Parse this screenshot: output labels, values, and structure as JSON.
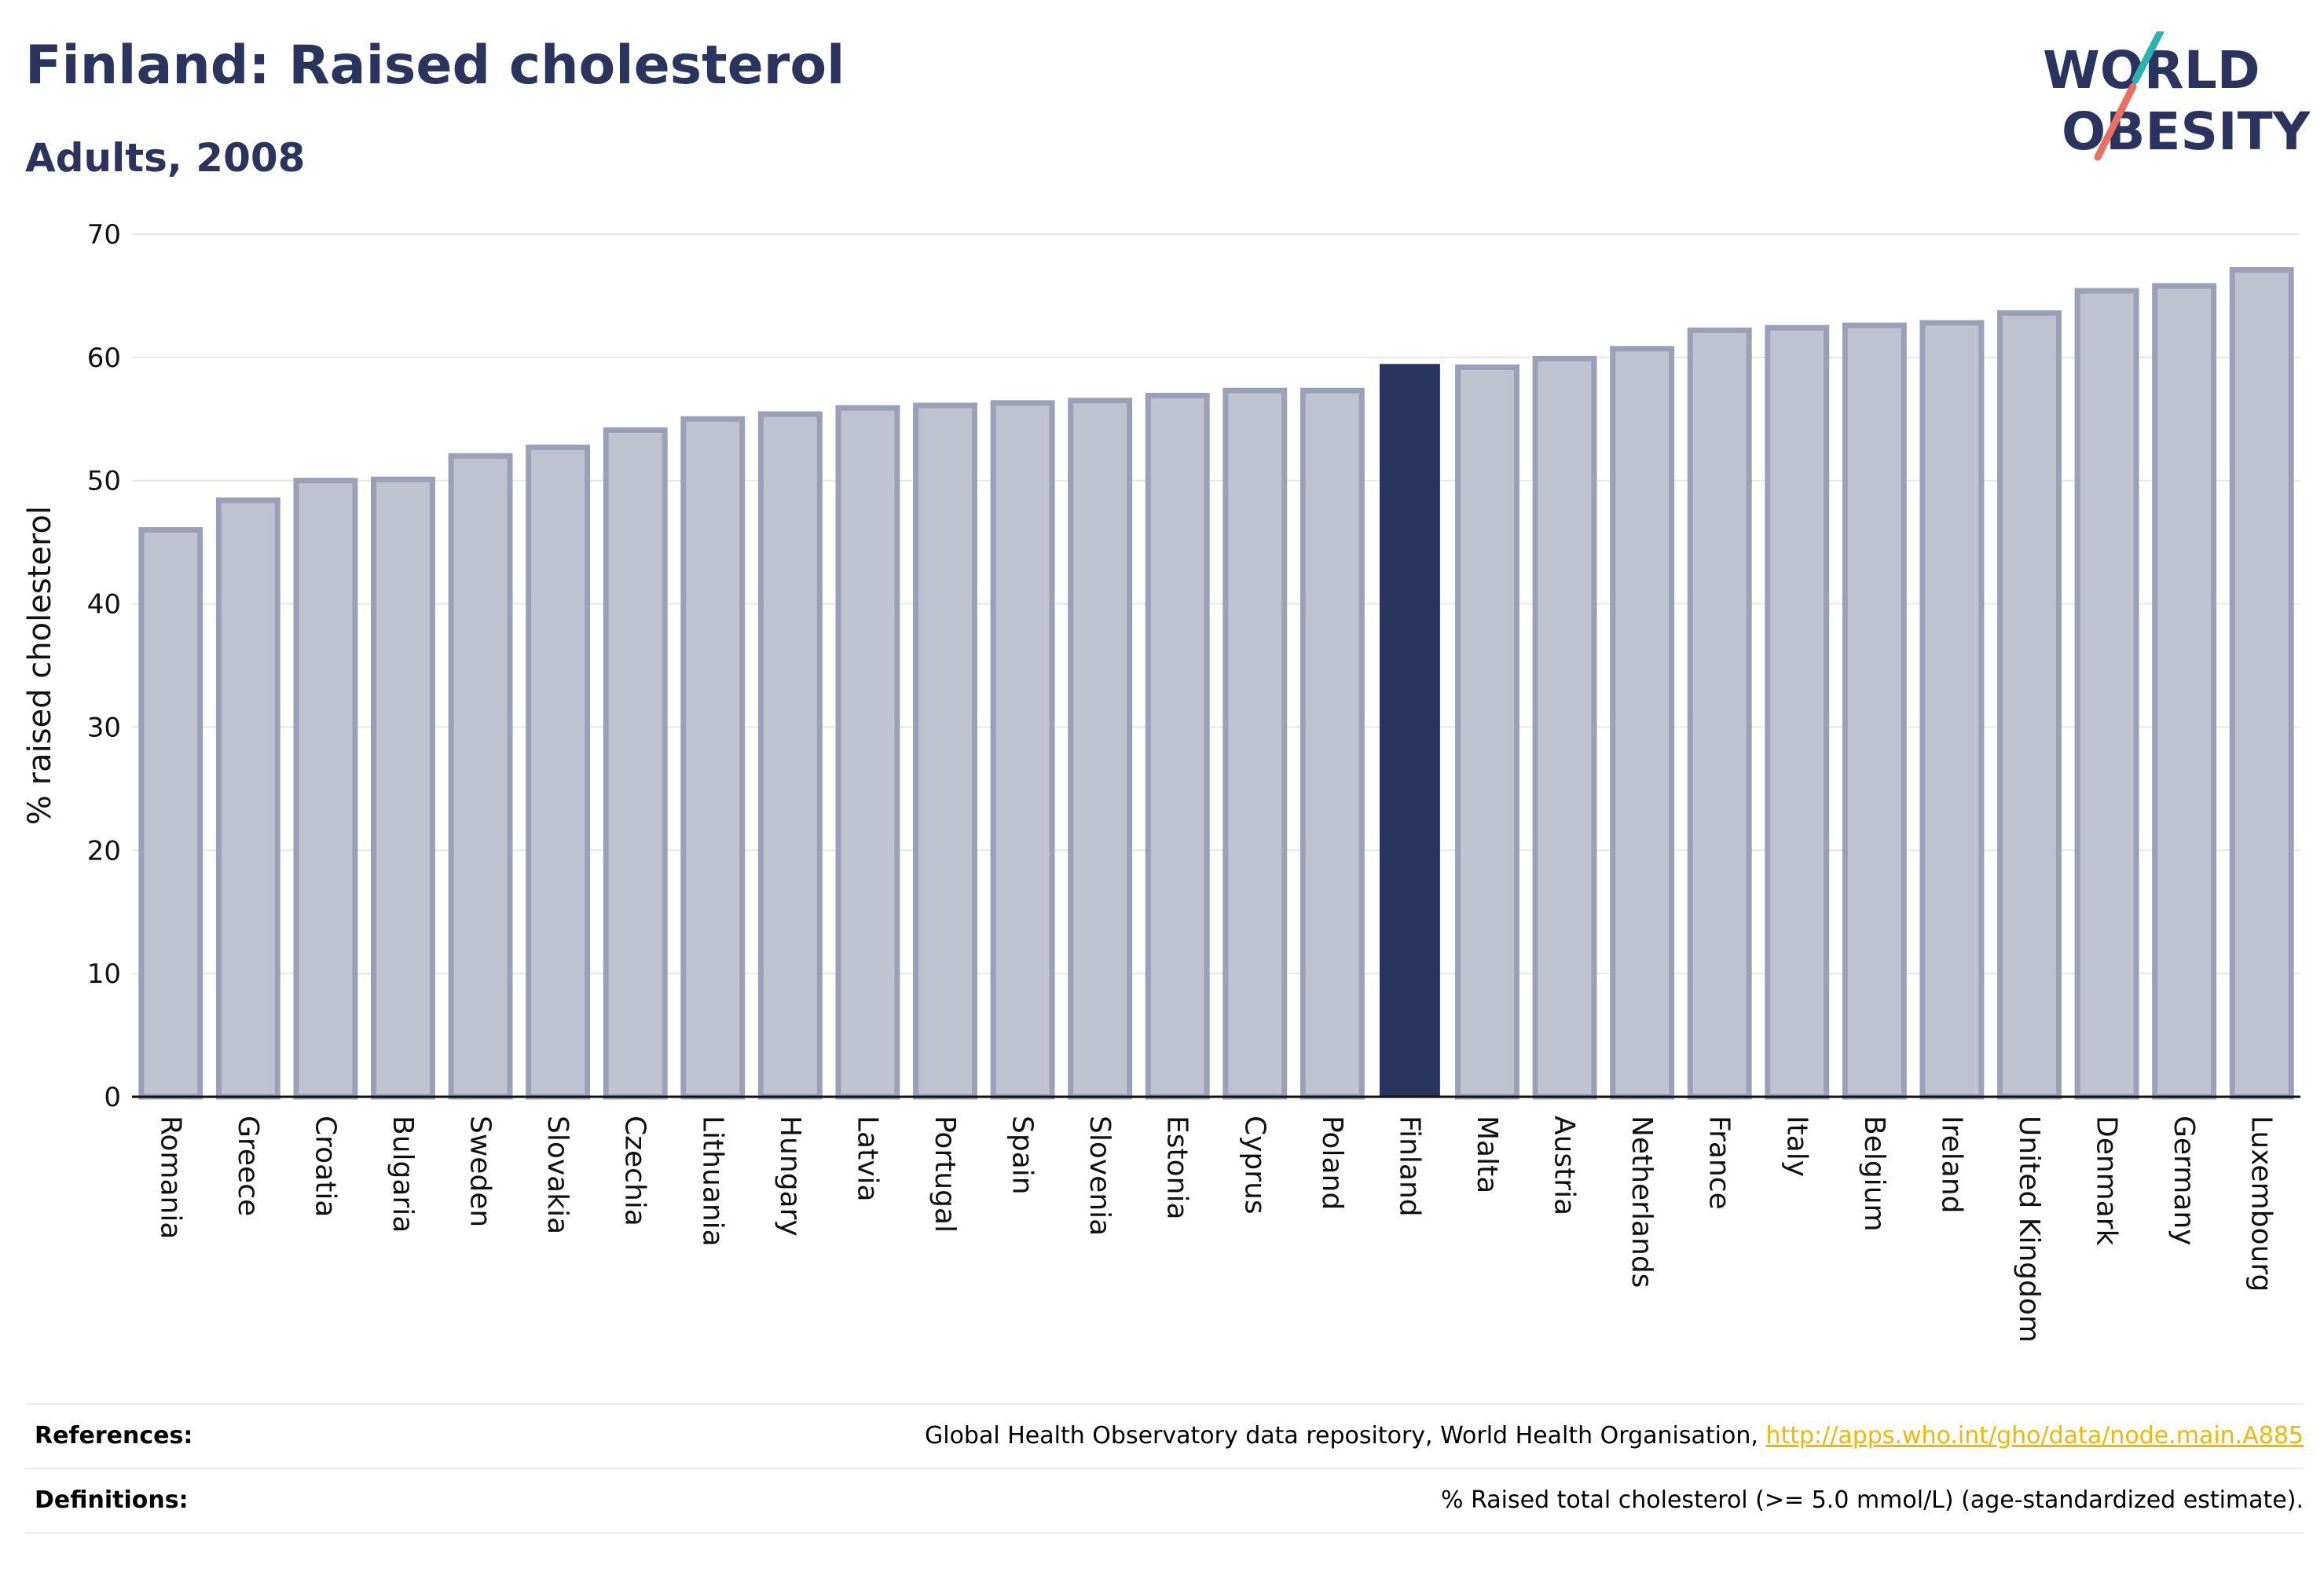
{
  "header": {
    "title": "Finland: Raised cholesterol",
    "subtitle": "Adults, 2008"
  },
  "logo": {
    "line1": "WORLD",
    "line2": "OBESITY"
  },
  "colors": {
    "highlight": "#2a355f",
    "bar_fill": "#bfc2cf",
    "bar_stroke": "#9aa0b7",
    "accent_teal": "#2bb3b1",
    "accent_coral": "#e8705f",
    "link": "#f2b705"
  },
  "chart_data": {
    "type": "bar",
    "title": "Finland: Raised cholesterol",
    "subtitle": "Adults, 2008",
    "ylabel": "% raised cholesterol",
    "xlabel": "",
    "ylim": [
      0,
      70
    ],
    "yticks": [
      0,
      10,
      20,
      30,
      40,
      50,
      60,
      70
    ],
    "grid": true,
    "highlight": "Finland",
    "categories": [
      "Romania",
      "Greece",
      "Croatia",
      "Bulgaria",
      "Sweden",
      "Slovakia",
      "Czechia",
      "Lithuania",
      "Hungary",
      "Latvia",
      "Portugal",
      "Spain",
      "Slovenia",
      "Estonia",
      "Cyprus",
      "Poland",
      "Finland",
      "Malta",
      "Austria",
      "Netherlands",
      "France",
      "Italy",
      "Belgium",
      "Ireland",
      "United Kingdom",
      "Denmark",
      "Germany",
      "Luxembourg"
    ],
    "values": [
      46.0,
      48.4,
      50.0,
      50.1,
      52.0,
      52.7,
      54.1,
      55.0,
      55.4,
      55.9,
      56.1,
      56.3,
      56.5,
      56.9,
      57.3,
      57.3,
      59.4,
      59.2,
      59.9,
      60.7,
      62.2,
      62.4,
      62.6,
      62.8,
      63.6,
      65.4,
      65.8,
      67.1
    ]
  },
  "footer": {
    "references_label": "References:",
    "references_text": "Global Health Observatory data repository, World Health Organisation,",
    "references_link": "http://apps.who.int/gho/data/node.main.A885",
    "definitions_label": "Definitions:",
    "definitions_text": "% Raised total cholesterol (>= 5.0 mmol/L) (age-standardized estimate)."
  }
}
